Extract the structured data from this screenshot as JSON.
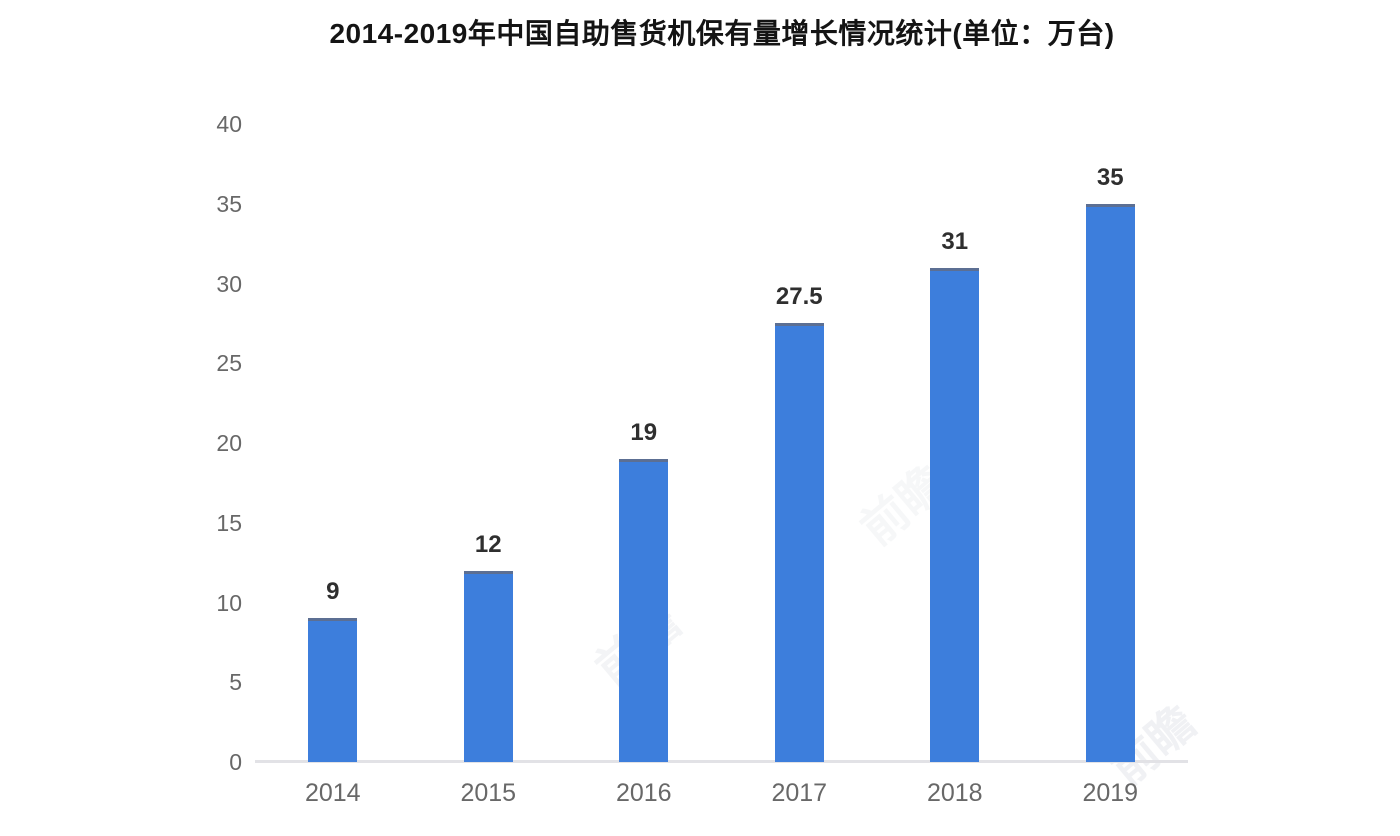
{
  "chart_data": {
    "type": "bar",
    "title": "2014-2019年中国自助售货机保有量增长情况统计(单位：万台)",
    "categories": [
      "2014",
      "2015",
      "2016",
      "2017",
      "2018",
      "2019"
    ],
    "values": [
      9,
      12,
      19,
      27.5,
      31,
      35
    ],
    "value_labels": [
      "9",
      "12",
      "19",
      "27.5",
      "31",
      "35"
    ],
    "xlabel": "",
    "ylabel": "",
    "ylim": [
      0,
      40
    ],
    "yticks": [
      0,
      5,
      10,
      15,
      20,
      25,
      30,
      35,
      40
    ],
    "grid": false,
    "legend": false,
    "bar_color": "#3d7edc",
    "bar_top_edge_color": "#5c6f93",
    "axis_line_color": "#e2e2e6",
    "tick_label_color": "#686868",
    "value_label_color": "#2f2f2f",
    "title_color": "#141414",
    "watermark_text": "前瞻"
  }
}
